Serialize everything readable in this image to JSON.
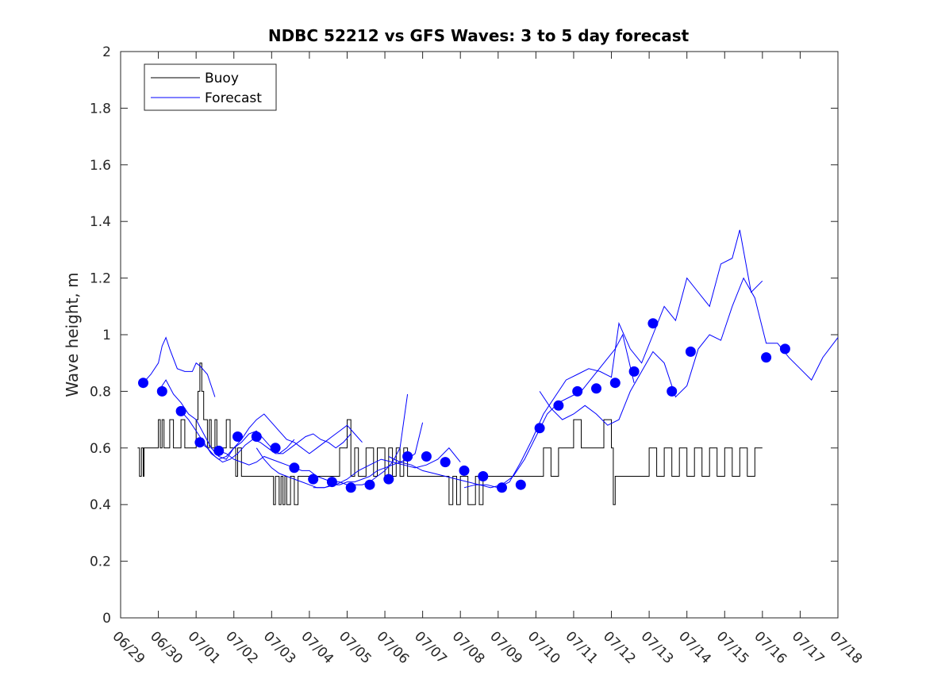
{
  "chart_data": {
    "type": "line",
    "title": "NDBC 52212 vs GFS Waves: 3 to 5 day forecast",
    "xlabel": "",
    "ylabel": "Wave height, m",
    "x_range_days_from_0629": [
      0,
      19
    ],
    "ylim": [
      0,
      2
    ],
    "x_ticks": [
      "06/29",
      "06/30",
      "07/01",
      "07/02",
      "07/03",
      "07/04",
      "07/05",
      "07/06",
      "07/07",
      "07/08",
      "07/09",
      "07/10",
      "07/11",
      "07/12",
      "07/13",
      "07/14",
      "07/15",
      "07/16",
      "07/17",
      "07/18"
    ],
    "y_ticks": [
      "0",
      "0.2",
      "0.4",
      "0.6",
      "0.8",
      "1",
      "1.2",
      "1.4",
      "1.6",
      "1.8",
      "2"
    ],
    "legend": {
      "placement": "top-left",
      "entries": [
        "Buoy",
        "Forecast"
      ]
    },
    "grid": false,
    "colors": {
      "buoy": "#000000",
      "forecast": "#0000ff",
      "axes": "#262626"
    },
    "series": [
      {
        "name": "Buoy",
        "style": "step-line",
        "x": [
          0.45,
          0.5,
          0.55,
          0.6,
          0.62,
          0.7,
          0.9,
          1.0,
          1.05,
          1.1,
          1.15,
          1.2,
          1.3,
          1.4,
          1.5,
          1.6,
          1.7,
          1.9,
          2.0,
          2.05,
          2.1,
          2.15,
          2.2,
          2.3,
          2.35,
          2.4,
          2.45,
          2.5,
          2.55,
          2.6,
          2.7,
          2.8,
          2.9,
          3.0,
          3.05,
          3.1,
          3.2,
          3.3,
          3.4,
          3.6,
          3.7,
          3.8,
          3.9,
          4.0,
          4.05,
          4.1,
          4.2,
          4.25,
          4.3,
          4.35,
          4.4,
          4.5,
          4.6,
          4.7,
          4.8,
          4.9,
          5.0,
          5.2,
          5.4,
          5.6,
          5.8,
          6.0,
          6.1,
          6.2,
          6.3,
          6.4,
          6.5,
          6.6,
          6.7,
          6.8,
          7.0,
          7.1,
          7.2,
          7.3,
          7.4,
          7.5,
          7.6,
          7.8,
          8.0,
          8.2,
          8.4,
          8.6,
          8.7,
          8.8,
          8.9,
          9.0,
          9.2,
          9.4,
          9.5,
          9.6,
          9.8,
          10.0,
          10.2,
          10.4,
          10.6,
          10.8,
          11.0,
          11.2,
          11.4,
          11.6,
          11.8,
          12.0,
          12.2,
          12.4,
          12.6,
          12.8,
          13.0,
          13.05,
          13.1,
          13.2,
          13.4,
          13.6,
          13.8,
          14.0,
          14.2,
          14.4,
          14.6,
          14.8,
          15.0,
          15.2,
          15.4,
          15.6,
          15.8,
          16.0,
          16.2,
          16.4,
          16.6,
          16.8,
          17.0
        ],
        "values": [
          0.6,
          0.5,
          0.6,
          0.5,
          0.6,
          0.6,
          0.6,
          0.7,
          0.6,
          0.7,
          0.6,
          0.6,
          0.7,
          0.6,
          0.6,
          0.7,
          0.6,
          0.6,
          0.7,
          0.8,
          0.9,
          0.8,
          0.7,
          0.6,
          0.7,
          0.6,
          0.6,
          0.7,
          0.6,
          0.6,
          0.6,
          0.7,
          0.6,
          0.6,
          0.5,
          0.6,
          0.5,
          0.5,
          0.5,
          0.5,
          0.5,
          0.5,
          0.5,
          0.5,
          0.4,
          0.5,
          0.4,
          0.5,
          0.4,
          0.5,
          0.4,
          0.5,
          0.4,
          0.5,
          0.5,
          0.5,
          0.5,
          0.5,
          0.5,
          0.5,
          0.6,
          0.7,
          0.5,
          0.6,
          0.5,
          0.5,
          0.6,
          0.6,
          0.5,
          0.6,
          0.5,
          0.6,
          0.5,
          0.6,
          0.5,
          0.6,
          0.5,
          0.5,
          0.5,
          0.5,
          0.5,
          0.5,
          0.4,
          0.5,
          0.4,
          0.5,
          0.4,
          0.5,
          0.4,
          0.5,
          0.5,
          0.5,
          0.5,
          0.5,
          0.5,
          0.5,
          0.5,
          0.6,
          0.5,
          0.6,
          0.6,
          0.7,
          0.6,
          0.6,
          0.6,
          0.7,
          0.6,
          0.4,
          0.5,
          0.5,
          0.5,
          0.5,
          0.5,
          0.6,
          0.5,
          0.6,
          0.5,
          0.6,
          0.5,
          0.6,
          0.5,
          0.6,
          0.5,
          0.6,
          0.5,
          0.6,
          0.5,
          0.6,
          0.6
        ]
      },
      {
        "name": "Forecast",
        "style": "line",
        "segments": [
          {
            "x": [
              0.6,
              0.8,
              1.0,
              1.1,
              1.2,
              1.3,
              1.5,
              1.7,
              1.9,
              2.0,
              2.1,
              2.3,
              2.5
            ],
            "values": [
              0.83,
              0.86,
              0.9,
              0.96,
              0.99,
              0.95,
              0.88,
              0.87,
              0.87,
              0.9,
              0.89,
              0.86,
              0.78
            ]
          },
          {
            "x": [
              1.0,
              1.2,
              1.4,
              1.6,
              1.8,
              2.0,
              2.2,
              2.4,
              2.6,
              2.8,
              3.0,
              3.2,
              3.4,
              3.6,
              3.8,
              4.0,
              4.2,
              4.4,
              4.6
            ],
            "values": [
              0.8,
              0.84,
              0.79,
              0.76,
              0.72,
              0.7,
              0.65,
              0.6,
              0.57,
              0.56,
              0.6,
              0.62,
              0.65,
              0.66,
              0.63,
              0.6,
              0.58,
              0.6,
              0.63
            ]
          },
          {
            "x": [
              1.6,
              1.8,
              2.0,
              2.2,
              2.4,
              2.6,
              2.8,
              3.0,
              3.2,
              3.4,
              3.6,
              3.8,
              4.0,
              4.2,
              4.4,
              4.6,
              4.8,
              5.0,
              5.2,
              5.4,
              5.6,
              5.8,
              6.0,
              6.2,
              6.4
            ],
            "values": [
              0.73,
              0.7,
              0.66,
              0.62,
              0.58,
              0.56,
              0.57,
              0.6,
              0.63,
              0.67,
              0.7,
              0.72,
              0.69,
              0.66,
              0.63,
              0.62,
              0.6,
              0.58,
              0.6,
              0.62,
              0.64,
              0.66,
              0.68,
              0.65,
              0.62
            ]
          },
          {
            "x": [
              2.1,
              2.3,
              2.5,
              2.7,
              2.9,
              3.1,
              3.3,
              3.5,
              3.7,
              3.9,
              4.1,
              4.3,
              4.5,
              4.7,
              4.9,
              5.1,
              5.3,
              5.5,
              5.7,
              5.9,
              6.1
            ],
            "values": [
              0.62,
              0.6,
              0.57,
              0.55,
              0.56,
              0.58,
              0.61,
              0.63,
              0.62,
              0.6,
              0.58,
              0.58,
              0.6,
              0.62,
              0.64,
              0.65,
              0.63,
              0.62,
              0.6,
              0.62,
              0.65
            ]
          },
          {
            "x": [
              2.6,
              2.8,
              3.0,
              3.2,
              3.4,
              3.6,
              3.8,
              4.0,
              4.2,
              4.4,
              4.6,
              4.8,
              5.0,
              5.2,
              5.4,
              5.6,
              5.8,
              6.0,
              6.2,
              6.4,
              6.6,
              6.8,
              7.0,
              7.2,
              7.4,
              7.6
            ],
            "values": [
              0.59,
              0.58,
              0.56,
              0.55,
              0.54,
              0.55,
              0.57,
              0.56,
              0.55,
              0.54,
              0.53,
              0.52,
              0.52,
              0.5,
              0.49,
              0.48,
              0.48,
              0.47,
              0.47,
              0.47,
              0.48,
              0.5,
              0.52,
              0.55,
              0.6,
              0.79
            ]
          },
          {
            "x": [
              3.6,
              3.8,
              4.0,
              4.2,
              4.4,
              4.6,
              4.8,
              5.0,
              5.2,
              5.4,
              5.6,
              5.8,
              6.0,
              6.2,
              6.4,
              6.6,
              6.8,
              7.0,
              7.2,
              7.4,
              7.6,
              7.8,
              8.0
            ],
            "values": [
              0.6,
              0.56,
              0.53,
              0.51,
              0.5,
              0.49,
              0.48,
              0.47,
              0.46,
              0.46,
              0.47,
              0.47,
              0.48,
              0.48,
              0.49,
              0.5,
              0.52,
              0.53,
              0.54,
              0.55,
              0.56,
              0.58,
              0.69
            ]
          },
          {
            "x": [
              5.1,
              5.4,
              5.7,
              6.0,
              6.3,
              6.6,
              6.9,
              7.2,
              7.5,
              7.8,
              8.1,
              8.4,
              8.7,
              9.0
            ],
            "values": [
              0.46,
              0.46,
              0.47,
              0.49,
              0.52,
              0.54,
              0.56,
              0.55,
              0.54,
              0.53,
              0.54,
              0.56,
              0.6,
              0.55
            ]
          },
          {
            "x": [
              7.1,
              7.4,
              7.7,
              8.0,
              8.3,
              8.6,
              8.9,
              9.2,
              9.5,
              9.8,
              10.1,
              10.4,
              10.7,
              11.0,
              11.3,
              11.6,
              11.9,
              12.2,
              12.5,
              12.8,
              13.1,
              13.3,
              13.6
            ],
            "values": [
              0.57,
              0.55,
              0.54,
              0.52,
              0.51,
              0.5,
              0.49,
              0.48,
              0.47,
              0.46,
              0.47,
              0.5,
              0.56,
              0.64,
              0.72,
              0.76,
              0.78,
              0.8,
              0.85,
              0.9,
              0.95,
              1.0,
              0.83
            ]
          },
          {
            "x": [
              9.1,
              9.4,
              9.7,
              10.0,
              10.3,
              10.6,
              10.9,
              11.2,
              11.5,
              11.8,
              12.1,
              12.4,
              12.7,
              13.0,
              13.2,
              13.5,
              13.8,
              14.1,
              14.4,
              14.7,
              15.0,
              15.3,
              15.6,
              15.9,
              16.2,
              16.4,
              16.7,
              17.0
            ],
            "values": [
              0.46,
              0.47,
              0.47,
              0.46,
              0.48,
              0.55,
              0.63,
              0.72,
              0.78,
              0.84,
              0.86,
              0.88,
              0.87,
              0.85,
              1.04,
              0.95,
              0.9,
              1.0,
              1.1,
              1.05,
              1.2,
              1.15,
              1.1,
              1.25,
              1.27,
              1.37,
              1.15,
              1.19
            ]
          },
          {
            "x": [
              11.1,
              11.4,
              11.7,
              12.0,
              12.3,
              12.6,
              12.9,
              13.2,
              13.5,
              13.8,
              14.1,
              14.4,
              14.7,
              15.0,
              15.3,
              15.6,
              15.9,
              16.2,
              16.5,
              16.8,
              17.1,
              17.4,
              17.7,
              18.0,
              18.3,
              18.6,
              19.0
            ],
            "values": [
              0.8,
              0.74,
              0.7,
              0.72,
              0.75,
              0.72,
              0.68,
              0.7,
              0.8,
              0.87,
              0.94,
              0.9,
              0.78,
              0.82,
              0.95,
              1.0,
              0.98,
              1.1,
              1.2,
              1.13,
              0.97,
              0.97,
              0.92,
              0.88,
              0.84,
              0.92,
              0.99
            ]
          }
        ],
        "markers": {
          "x": [
            0.6,
            1.1,
            1.6,
            2.1,
            2.6,
            3.1,
            3.6,
            4.1,
            4.6,
            5.1,
            5.6,
            6.1,
            6.6,
            7.1,
            7.6,
            8.1,
            8.6,
            9.1,
            9.6,
            10.1,
            10.6,
            11.1,
            11.6,
            12.1,
            12.6,
            13.1,
            13.6,
            14.1,
            14.6,
            15.1,
            17.1,
            17.6
          ],
          "values": [
            0.83,
            0.8,
            0.73,
            0.62,
            0.59,
            0.64,
            0.64,
            0.6,
            0.53,
            0.49,
            0.48,
            0.46,
            0.47,
            0.49,
            0.57,
            0.57,
            0.55,
            0.52,
            0.5,
            0.46,
            0.47,
            0.67,
            0.75,
            0.8,
            0.81,
            0.83,
            0.87,
            1.04,
            0.8,
            0.94,
            0.92,
            0.95
          ]
        }
      }
    ]
  }
}
